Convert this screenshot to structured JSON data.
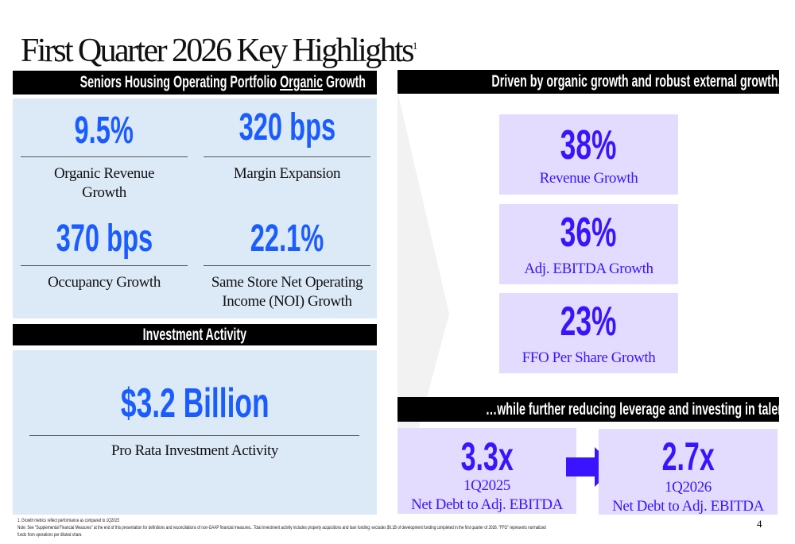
{
  "title": {
    "text": "First Quarter 2026 Key Highlights",
    "superscript": "1"
  },
  "left": {
    "header": {
      "prefix": "Seniors Housing Operating Portfolio ",
      "underlined": "Organic",
      "suffix": " Growth"
    },
    "metrics": [
      {
        "value": "9.5%",
        "label": "Organic Revenue Growth"
      },
      {
        "value": "320 bps",
        "label": "Margin Expansion"
      },
      {
        "value": "370 bps",
        "label": "Occupancy Growth"
      },
      {
        "value": "22.1%",
        "label": "Same Store Net Operating Income (NOI) Growth"
      }
    ],
    "investment_header": "Investment Activity",
    "investment": {
      "value": "$3.2 Billion",
      "label": "Pro Rata Investment Activity"
    }
  },
  "right": {
    "header": "Driven by organic growth and robust external growth, we have achieved…",
    "metrics": [
      {
        "value": "38%",
        "label": "Revenue Growth"
      },
      {
        "value": "36%",
        "label": "Adj. EBITDA Growth"
      },
      {
        "value": "23%",
        "label": "FFO Per Share Growth"
      }
    ],
    "leverage_header": "…while further reducing leverage and investing in talent and systems",
    "leverage": [
      {
        "value": "3.3x",
        "period": "1Q2025",
        "label": "Net Debt to Adj. EBITDA"
      },
      {
        "value": "2.7x",
        "period": "1Q2026",
        "label": "Net Debt to Adj. EBITDA"
      }
    ]
  },
  "footnotes": [
    "1. Growth metrics reflect performance as compared to 1Q2025",
    "Note: See \"Supplemental Financial Measures\" at the end of this presentation for definitions and reconciliations of non-GAAP financial measures.. Total investment activity includes property acquisitions and loan funding; excludes $0.1B of development funding completed in the first quarter of 2026. \"FFO\" represents normalized",
    "funds from operations per diluted share."
  ],
  "page_number": "4",
  "colors": {
    "left_accent": "#1a5cff",
    "left_panel": "#dce9f7",
    "right_accent": "#3b14ff",
    "right_panel": "#e3dcff"
  }
}
